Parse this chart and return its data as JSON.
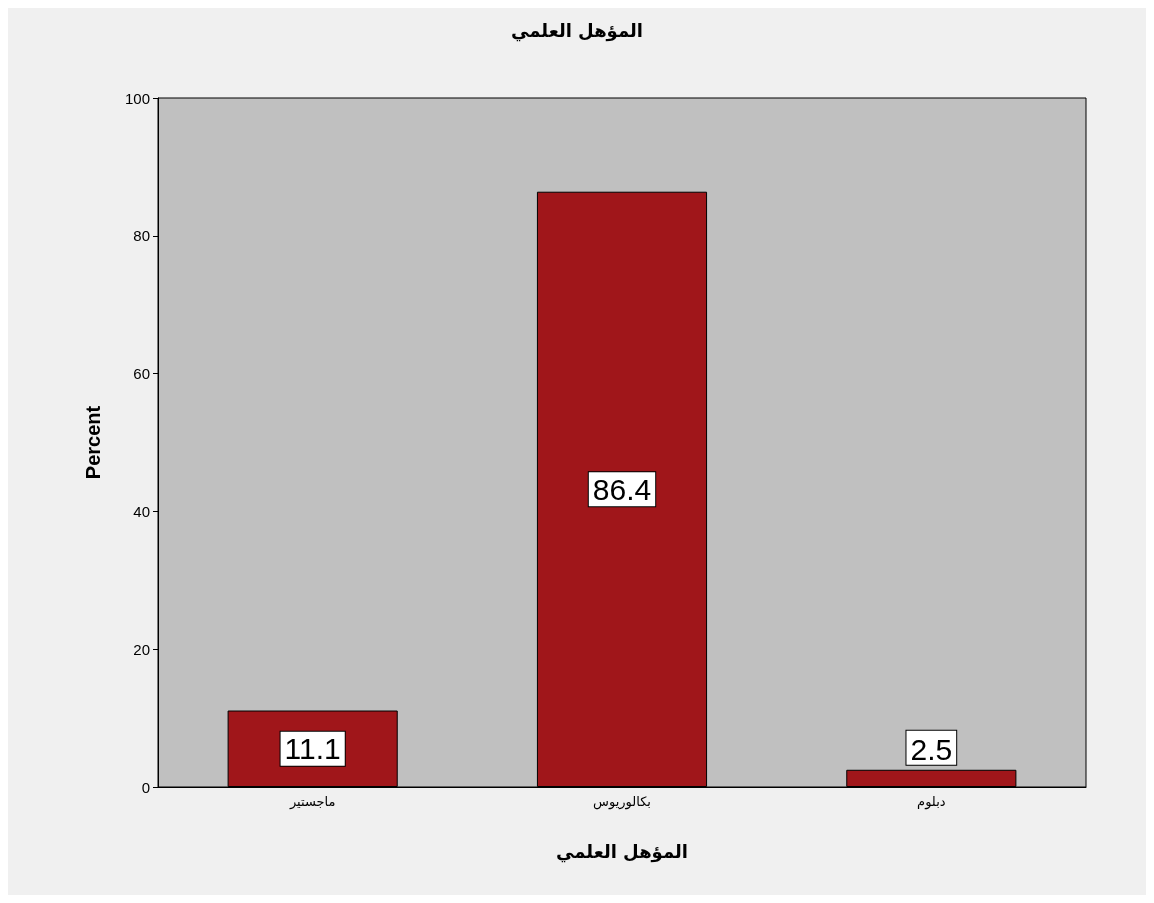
{
  "chart_data": {
    "type": "bar",
    "title": "المؤهل العلمي",
    "xlabel": "المؤهل العلمي",
    "ylabel": "Percent",
    "categories": [
      "ماجستير",
      "بكالوريوس",
      "دبلوم"
    ],
    "values": [
      11.1,
      86.4,
      2.5
    ],
    "color": "#a0161a",
    "ylim": [
      0,
      100
    ],
    "yticks": [
      0,
      20,
      40,
      60,
      80,
      100
    ],
    "grid": false,
    "data_labels": true
  }
}
